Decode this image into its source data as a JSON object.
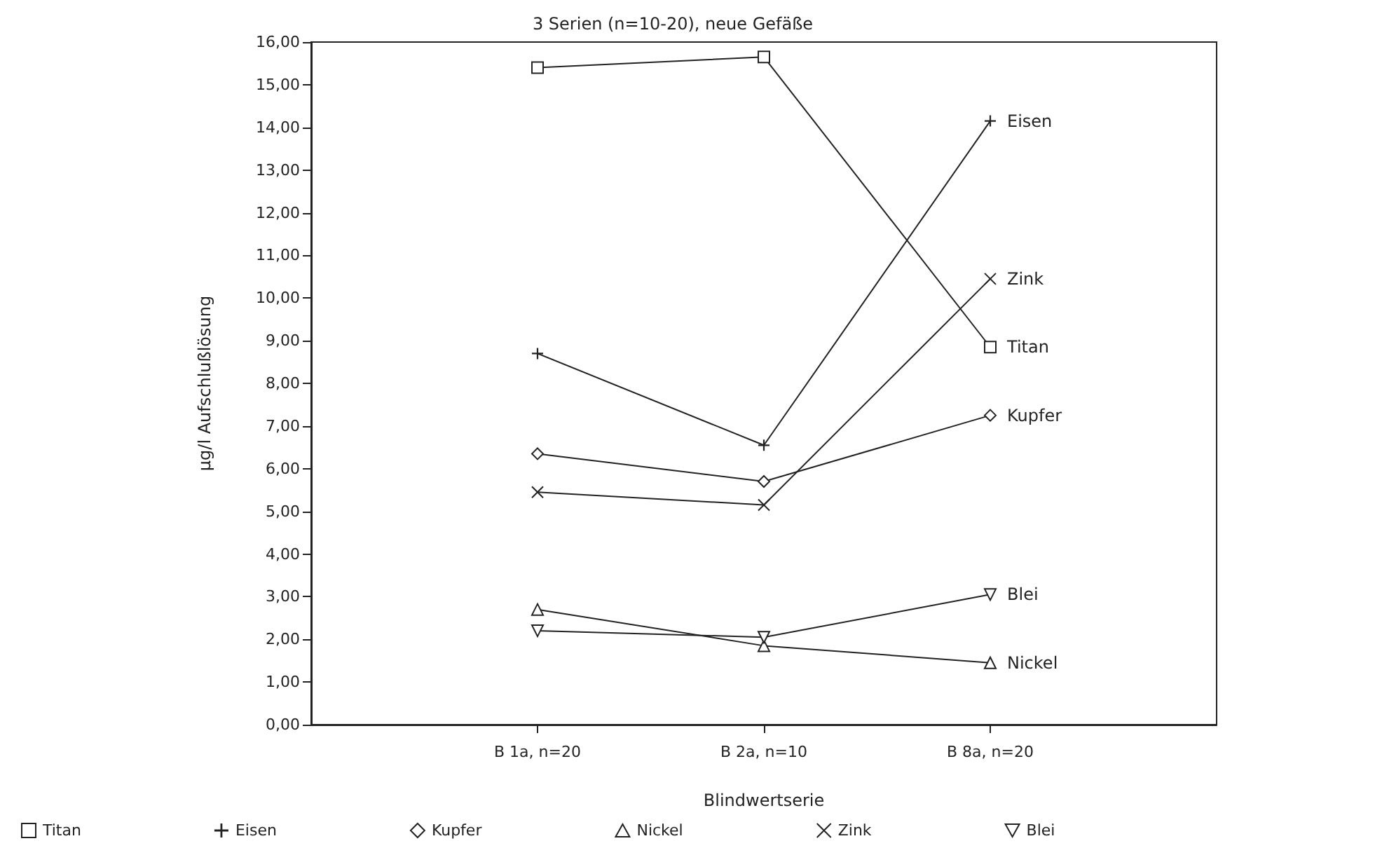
{
  "chart_data": {
    "type": "line",
    "title": "3 Serien (n=10-20), neue Gefäße",
    "xlabel": "Blindwertserie",
    "ylabel": "µg/l Aufschlußlösung",
    "categories": [
      "B 1a, n=20",
      "B 2a, n=10",
      "B 8a, n=20"
    ],
    "series": [
      {
        "name": "Titan",
        "color": "#222222",
        "marker": "square",
        "values": [
          15.4,
          15.65,
          8.85
        ]
      },
      {
        "name": "Eisen",
        "color": "#222222",
        "marker": "plus",
        "values": [
          8.7,
          6.55,
          14.15
        ]
      },
      {
        "name": "Kupfer",
        "color": "#222222",
        "marker": "diamond",
        "values": [
          6.35,
          5.7,
          7.25
        ]
      },
      {
        "name": "Nickel",
        "color": "#222222",
        "marker": "triangle",
        "values": [
          2.7,
          1.85,
          1.45
        ]
      },
      {
        "name": "Zink",
        "color": "#222222",
        "marker": "cross",
        "values": [
          5.45,
          5.15,
          10.45
        ]
      },
      {
        "name": "Blei",
        "color": "#222222",
        "marker": "triangle-down",
        "values": [
          2.2,
          2.05,
          3.05
        ]
      }
    ],
    "ylim": [
      0,
      16
    ],
    "yticks": [
      {
        "value": 0,
        "label": "0,00"
      },
      {
        "value": 1,
        "label": "1,00"
      },
      {
        "value": 2,
        "label": "2,00"
      },
      {
        "value": 3,
        "label": "3,00"
      },
      {
        "value": 4,
        "label": "4,00"
      },
      {
        "value": 5,
        "label": "5,00"
      },
      {
        "value": 6,
        "label": "6,00"
      },
      {
        "value": 7,
        "label": "7,00"
      },
      {
        "value": 8,
        "label": "8,00"
      },
      {
        "value": 9,
        "label": "9,00"
      },
      {
        "value": 10,
        "label": "10,00"
      },
      {
        "value": 11,
        "label": "11,00"
      },
      {
        "value": 12,
        "label": "12,00"
      },
      {
        "value": 13,
        "label": "13,00"
      },
      {
        "value": 14,
        "label": "14,00"
      },
      {
        "value": 15,
        "label": "15,00"
      },
      {
        "value": 16,
        "label": "16,00"
      }
    ],
    "grid": false,
    "legend": "bottom",
    "line_style": "solid"
  }
}
